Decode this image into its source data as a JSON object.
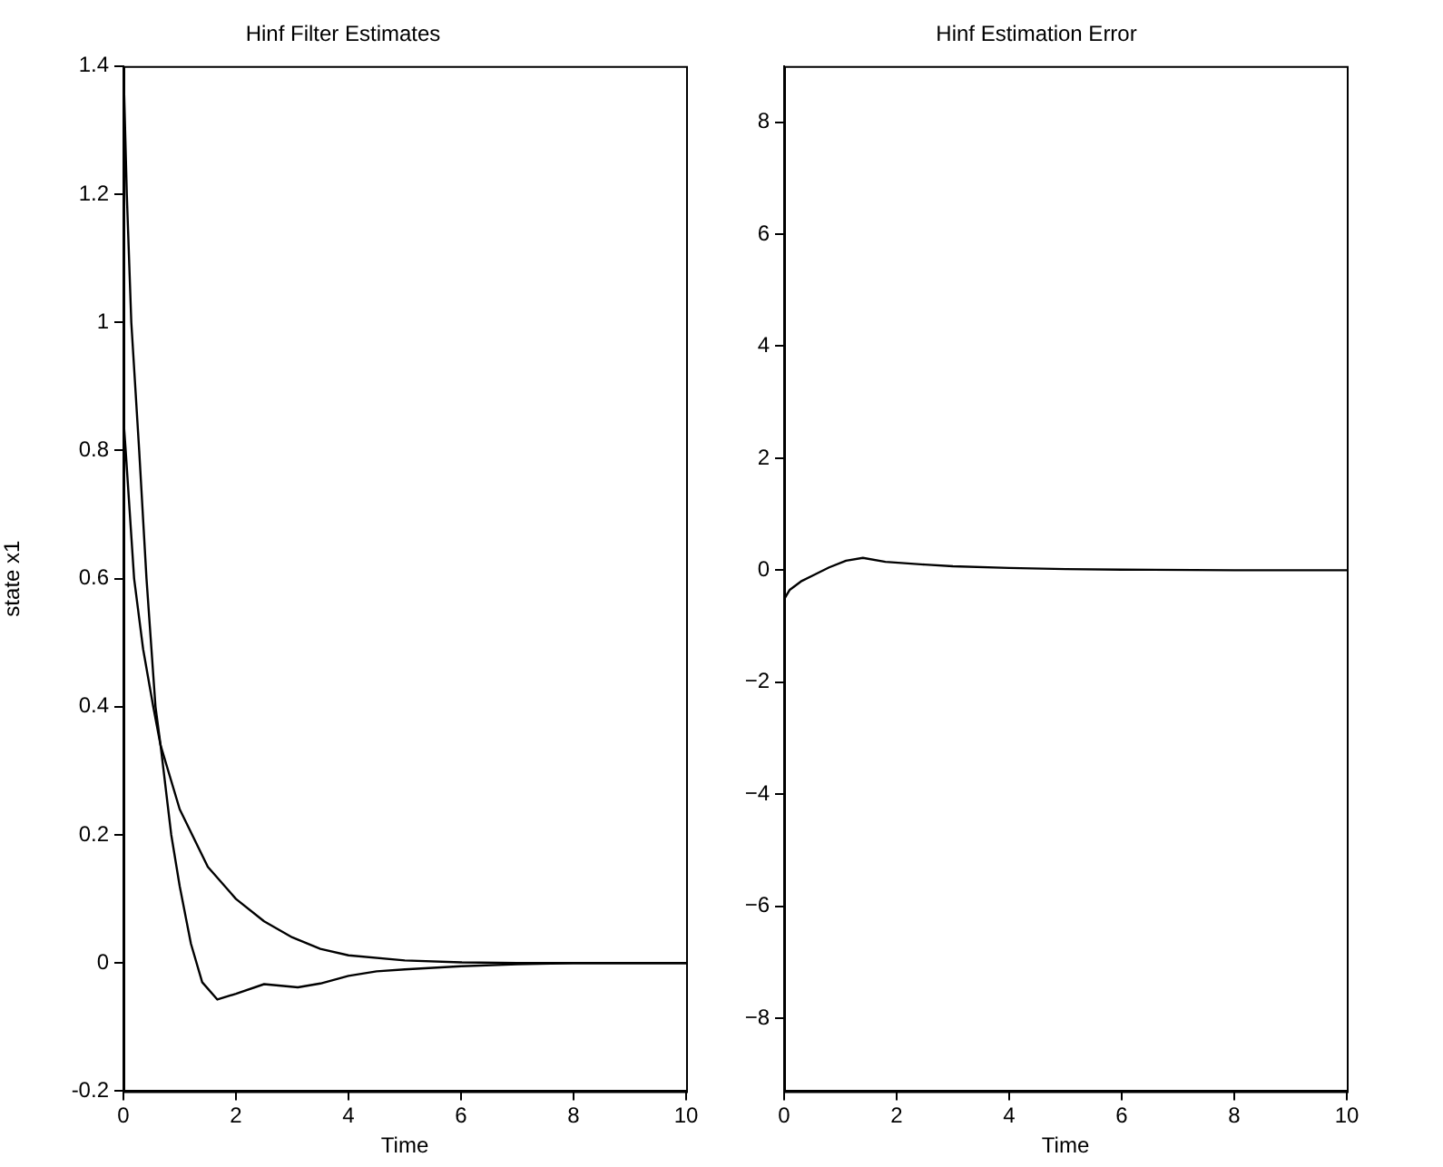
{
  "chart_data": [
    {
      "type": "line",
      "title": "Hinf Filter Estimates",
      "xlabel": "Time",
      "ylabel": "state x1",
      "xlim": [
        0,
        10
      ],
      "xticks": [
        0,
        2,
        4,
        6,
        8,
        10
      ],
      "ylim": [
        -0.2,
        1.4
      ],
      "yticks": [
        -0.2,
        0,
        0.2,
        0.4,
        0.6,
        0.8,
        1,
        1.2,
        1.4
      ],
      "grid": false,
      "legend": false,
      "marker": "none",
      "line_style": "solid",
      "series": [
        {
          "color": "#000000",
          "x": [
            0,
            0.06,
            0.14,
            0.28,
            0.41,
            0.57,
            0.66,
            0.85,
            1.0,
            1.2,
            1.4,
            1.67,
            2.0,
            2.5,
            3.1,
            3.5,
            4.0,
            4.5,
            5.0,
            6.0,
            7.0,
            8.0,
            10.0
          ],
          "values": [
            1.4,
            1.2,
            1.0,
            0.8,
            0.6,
            0.4,
            0.34,
            0.2,
            0.12,
            0.03,
            -0.03,
            -0.057,
            -0.048,
            -0.033,
            -0.038,
            -0.032,
            -0.02,
            -0.013,
            -0.01,
            -0.005,
            -0.002,
            0,
            0
          ]
        },
        {
          "color": "#000000",
          "x": [
            0,
            0.04,
            0.19,
            0.35,
            0.53,
            0.66,
            1.0,
            1.5,
            2.0,
            2.5,
            3.0,
            3.5,
            4.0,
            5.0,
            6.0,
            7.0,
            10.0
          ],
          "values": [
            0.85,
            0.8,
            0.6,
            0.49,
            0.4,
            0.34,
            0.24,
            0.15,
            0.1,
            0.065,
            0.04,
            0.022,
            0.012,
            0.004,
            0.001,
            0,
            0
          ]
        }
      ]
    },
    {
      "type": "line",
      "title": "Hinf Estimation Error",
      "xlabel": "Time",
      "xlim": [
        0,
        10
      ],
      "xticks": [
        0,
        2,
        4,
        6,
        8,
        10
      ],
      "ylim": [
        -9.3,
        9
      ],
      "yticks": [
        {
          "value": -8,
          "label": "−8"
        },
        {
          "value": -6,
          "label": "−6"
        },
        {
          "value": -4,
          "label": "−4"
        },
        {
          "value": -2,
          "label": "−2"
        },
        0,
        2,
        4,
        6,
        8
      ],
      "grid": false,
      "legend": false,
      "marker": "none",
      "line_style": "solid",
      "series": [
        {
          "color": "#000000",
          "x": [
            0,
            0.1,
            0.3,
            0.5,
            0.8,
            1.1,
            1.4,
            1.8,
            2.5,
            3.0,
            4.0,
            5.0,
            6.0,
            8.0,
            10.0
          ],
          "values": [
            -0.52,
            -0.35,
            -0.2,
            -0.1,
            0.05,
            0.17,
            0.22,
            0.15,
            0.1,
            0.07,
            0.04,
            0.02,
            0.01,
            0,
            0
          ]
        }
      ]
    }
  ]
}
